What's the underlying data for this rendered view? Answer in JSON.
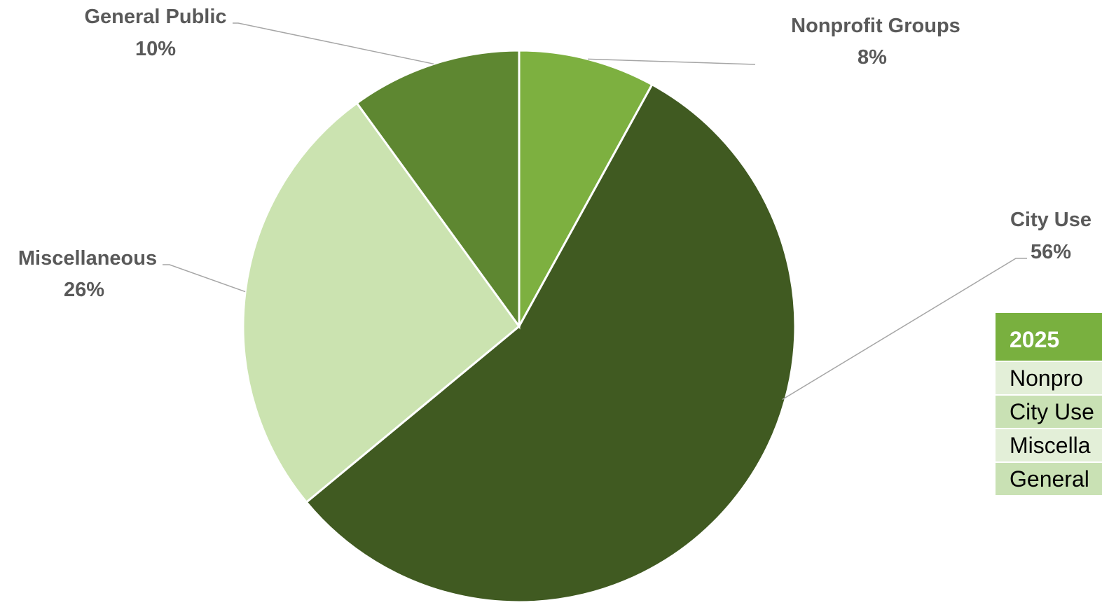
{
  "chart_data": {
    "type": "pie",
    "title": "",
    "slices": [
      {
        "label": "Nonprofit Groups",
        "value": 8,
        "display": "8%",
        "color": "#7db040"
      },
      {
        "label": "City Use",
        "value": 56,
        "display": "56%",
        "color": "#405a21"
      },
      {
        "label": "Miscellaneous",
        "value": 26,
        "display": "26%",
        "color": "#cbe3b0"
      },
      {
        "label": "General Public",
        "value": 10,
        "display": "10%",
        "color": "#5e8731"
      }
    ],
    "start_angle_deg": 0,
    "direction": "clockwise",
    "label_style": "outside with leader lines"
  },
  "table": {
    "header": "2025",
    "rows": [
      "Nonpro",
      "City Use",
      "Miscella",
      "General"
    ]
  },
  "colors": {
    "table_header": "#79b03f",
    "table_row_light": "#e3efd8",
    "table_row_dark": "#c9e1b4",
    "leader_line": "#a6a6a6",
    "label_text": "#595959"
  }
}
